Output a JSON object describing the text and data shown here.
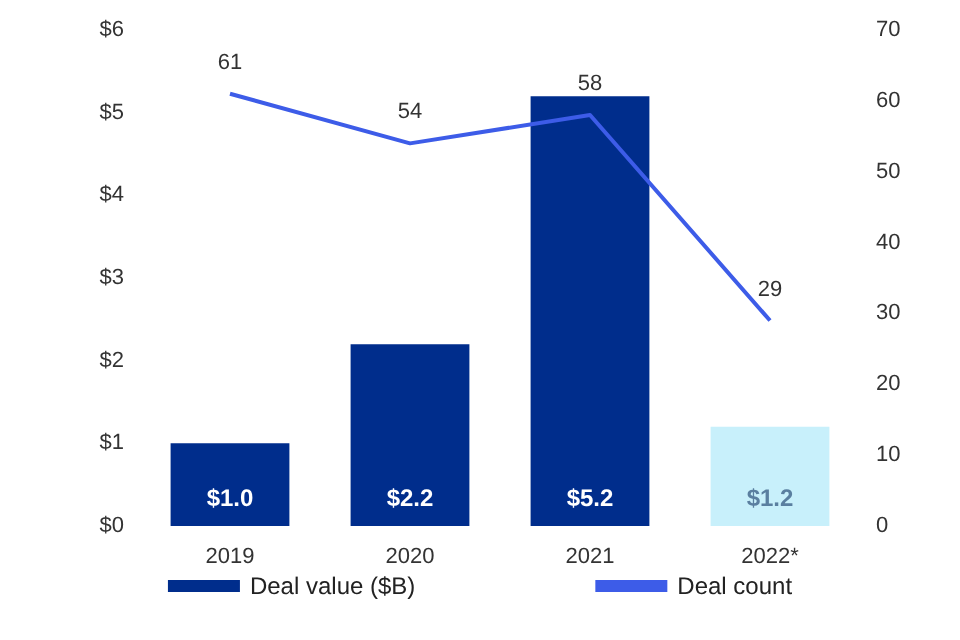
{
  "chart_data": {
    "type": "bar",
    "categories": [
      "2019",
      "2020",
      "2021",
      "2022*"
    ],
    "series": [
      {
        "name": "Deal value ($B)",
        "color": "#002d8c",
        "colors": [
          "#002d8c",
          "#002d8c",
          "#002d8c",
          "#c8f0fb"
        ],
        "values": [
          1.0,
          2.2,
          5.2,
          1.2
        ],
        "value_labels": [
          "$1.0",
          "$2.2",
          "$5.2",
          "$1.2"
        ]
      },
      {
        "name": "Deal count",
        "type": "line",
        "axis": "y2",
        "color": "#3d5ce8",
        "values": [
          61,
          54,
          58,
          29
        ],
        "value_labels": [
          "61",
          "54",
          "58",
          "29"
        ]
      }
    ],
    "ylim": [
      0,
      6
    ],
    "yticks": [
      {
        "value": 0,
        "label": "$0"
      },
      {
        "value": 1,
        "label": "$1"
      },
      {
        "value": 2,
        "label": "$2"
      },
      {
        "value": 3,
        "label": "$3"
      },
      {
        "value": 4,
        "label": "$4"
      },
      {
        "value": 5,
        "label": "$5"
      },
      {
        "value": 6,
        "label": "$6"
      }
    ],
    "y2lim": [
      0,
      70
    ],
    "y2ticks": [
      0,
      10,
      20,
      30,
      40,
      50,
      60,
      70
    ],
    "grid": false,
    "legend": "bottom",
    "marker": "none",
    "line_style": "solid"
  }
}
